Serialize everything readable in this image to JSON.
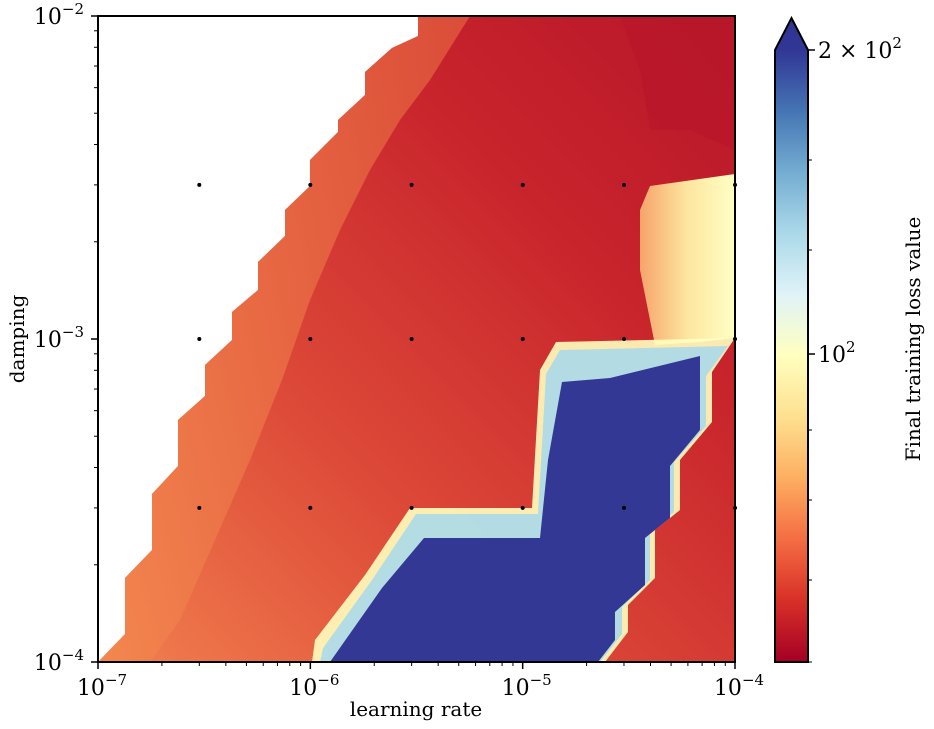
{
  "chart_data": {
    "type": "heatmap",
    "xlabel": "learning rate",
    "ylabel": "damping",
    "x_scale": "log",
    "y_scale": "log",
    "xlim": [
      1e-07,
      0.0001
    ],
    "ylim": [
      0.0001,
      0.01
    ],
    "x_ticks": [
      {
        "value": 1e-07,
        "base": "10",
        "exp": "−7"
      },
      {
        "value": 1e-06,
        "base": "10",
        "exp": "−6"
      },
      {
        "value": 1e-05,
        "base": "10",
        "exp": "−5"
      },
      {
        "value": 0.0001,
        "base": "10",
        "exp": "−4"
      }
    ],
    "y_ticks": [
      {
        "value": 0.0001,
        "base": "10",
        "exp": "−4"
      },
      {
        "value": 0.001,
        "base": "10",
        "exp": "−3"
      },
      {
        "value": 0.01,
        "base": "10",
        "exp": "−2"
      }
    ],
    "sample_points": [
      [
        3e-07,
        0.0003
      ],
      [
        1e-06,
        0.0003
      ],
      [
        3e-06,
        0.0003
      ],
      [
        1e-05,
        0.0003
      ],
      [
        3e-05,
        0.0003
      ],
      [
        0.0001,
        0.0003
      ],
      [
        3e-07,
        0.001
      ],
      [
        1e-06,
        0.001
      ],
      [
        3e-06,
        0.001
      ],
      [
        1e-05,
        0.001
      ],
      [
        3e-05,
        0.001
      ],
      [
        0.0001,
        0.001
      ],
      [
        3e-07,
        0.003
      ],
      [
        1e-06,
        0.003
      ],
      [
        3e-06,
        0.003
      ],
      [
        1e-05,
        0.003
      ],
      [
        3e-05,
        0.003
      ],
      [
        0.0001,
        0.003
      ]
    ],
    "colorbar": {
      "label": "Final training loss value",
      "colormap": "RdYlBu",
      "scale": "log",
      "extend": "max",
      "ticks": [
        {
          "value": 100,
          "text": "10",
          "exp": "2"
        },
        {
          "value": 200,
          "text": "2 × 10",
          "exp": "2"
        }
      ],
      "colors": [
        "#a50026",
        "#d73027",
        "#f46d43",
        "#fdae61",
        "#fee090",
        "#ffffbf",
        "#e0f3f8",
        "#abd9e9",
        "#74add1",
        "#4575b4",
        "#313695"
      ]
    },
    "regions": {
      "low_loss_color": "#cc2a2a",
      "edge_color": "#f2804f",
      "diverged_color": "#333894",
      "high_loss_patch_color": "#fff3b0"
    }
  }
}
